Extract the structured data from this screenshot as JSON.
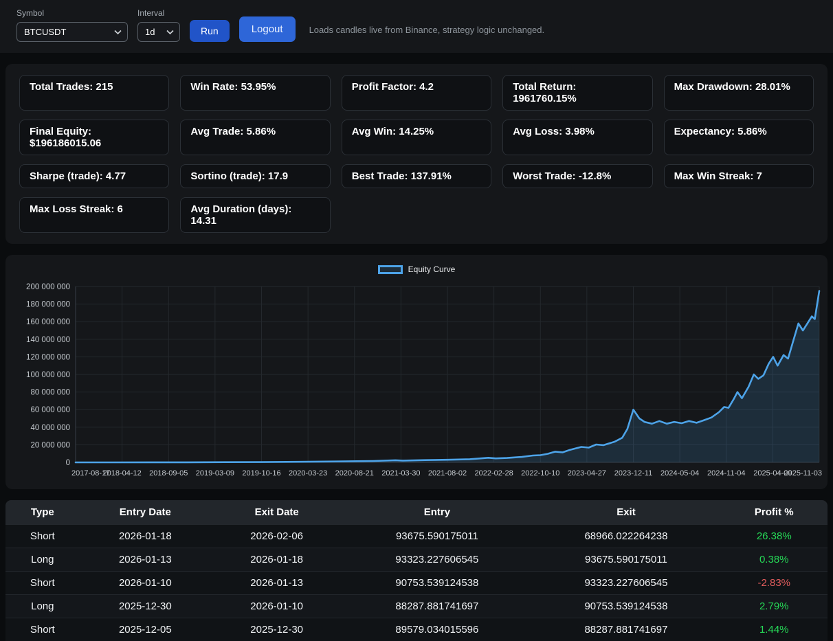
{
  "topbar": {
    "symbol_label": "Symbol",
    "symbol_value": "BTCUSDT",
    "interval_label": "Interval",
    "interval_value": "1d",
    "run_button": "Run",
    "logout_button": "Logout",
    "note": "Loads candles live from Binance, strategy logic unchanged."
  },
  "stats": [
    "Total Trades: 215",
    "Win Rate: 53.95%",
    "Profit Factor: 4.2",
    "Total Return: 1961760.15%",
    "Max Drawdown: 28.01%",
    "Final Equity: $196186015.06",
    "Avg Trade: 5.86%",
    "Avg Win: 14.25%",
    "Avg Loss: 3.98%",
    "Expectancy: 5.86%",
    "Sharpe (trade): 4.77",
    "Sortino (trade): 17.9",
    "Best Trade: 137.91%",
    "Worst Trade: -12.8%",
    "Max Win Streak: 7",
    "Max Loss Streak: 6",
    "Avg Duration (days): 14.31"
  ],
  "chart_data": {
    "type": "line",
    "legend_position": "top",
    "grid": true,
    "x_axis": {
      "tick_labels": [
        "2017-08-17",
        "2018-04-12",
        "2018-09-05",
        "2019-03-09",
        "2019-10-16",
        "2020-03-23",
        "2020-08-21",
        "2021-03-30",
        "2021-08-02",
        "2022-02-28",
        "2022-10-10",
        "2023-04-27",
        "2023-12-11",
        "2024-05-04",
        "2024-11-04",
        "2025-04-09",
        "2025-11-03"
      ]
    },
    "y_axis": {
      "min": 0,
      "max": 200000000,
      "tick_step": 20000000,
      "tick_labels": [
        "0",
        "20 000 000",
        "40 000 000",
        "60 000 000",
        "80 000 000",
        "100 000 000",
        "120 000 000",
        "140 000 000",
        "160 000 000",
        "180 000 000",
        "200 000 000"
      ]
    },
    "series": [
      {
        "name": "Equity Curve",
        "color": "#4da3e8",
        "fill": "rgba(77,163,232,0.16)",
        "points": [
          [
            0.0,
            10000
          ],
          [
            0.05,
            20000
          ],
          [
            0.1,
            50000
          ],
          [
            0.15,
            100000
          ],
          [
            0.2,
            200000
          ],
          [
            0.25,
            350000
          ],
          [
            0.3,
            600000
          ],
          [
            0.35,
            1000000
          ],
          [
            0.4,
            1600000
          ],
          [
            0.43,
            2400000
          ],
          [
            0.44,
            2000000
          ],
          [
            0.47,
            2600000
          ],
          [
            0.5,
            3000000
          ],
          [
            0.53,
            3600000
          ],
          [
            0.555,
            5200000
          ],
          [
            0.565,
            4500000
          ],
          [
            0.58,
            5000000
          ],
          [
            0.6,
            6200000
          ],
          [
            0.615,
            7800000
          ],
          [
            0.625,
            8200000
          ],
          [
            0.635,
            9800000
          ],
          [
            0.645,
            12200000
          ],
          [
            0.655,
            11400000
          ],
          [
            0.665,
            14300000
          ],
          [
            0.68,
            17600000
          ],
          [
            0.69,
            16800000
          ],
          [
            0.7,
            20300000
          ],
          [
            0.71,
            19600000
          ],
          [
            0.725,
            23500000
          ],
          [
            0.735,
            28000000
          ],
          [
            0.742,
            38000000
          ],
          [
            0.75,
            60000000
          ],
          [
            0.758,
            50000000
          ],
          [
            0.765,
            46000000
          ],
          [
            0.775,
            44000000
          ],
          [
            0.785,
            47000000
          ],
          [
            0.795,
            44000000
          ],
          [
            0.805,
            46000000
          ],
          [
            0.815,
            44500000
          ],
          [
            0.825,
            47000000
          ],
          [
            0.835,
            45000000
          ],
          [
            0.845,
            48000000
          ],
          [
            0.855,
            51000000
          ],
          [
            0.865,
            57000000
          ],
          [
            0.872,
            63000000
          ],
          [
            0.878,
            62000000
          ],
          [
            0.885,
            72000000
          ],
          [
            0.89,
            80000000
          ],
          [
            0.896,
            73000000
          ],
          [
            0.905,
            86000000
          ],
          [
            0.912,
            100000000
          ],
          [
            0.918,
            95000000
          ],
          [
            0.925,
            99000000
          ],
          [
            0.932,
            112000000
          ],
          [
            0.938,
            120000000
          ],
          [
            0.944,
            110000000
          ],
          [
            0.952,
            122000000
          ],
          [
            0.958,
            118000000
          ],
          [
            0.965,
            138000000
          ],
          [
            0.972,
            158000000
          ],
          [
            0.978,
            150000000
          ],
          [
            0.984,
            158000000
          ],
          [
            0.99,
            166000000
          ],
          [
            0.994,
            163000000
          ],
          [
            1.0,
            195000000
          ]
        ]
      }
    ]
  },
  "table": {
    "headers": [
      "Type",
      "Entry Date",
      "Exit Date",
      "Entry",
      "Exit",
      "Profit %"
    ],
    "rows": [
      [
        "Short",
        "2026-01-18",
        "2026-02-06",
        "93675.590175011",
        "68966.022264238",
        "26.38%"
      ],
      [
        "Long",
        "2026-01-13",
        "2026-01-18",
        "93323.227606545",
        "93675.590175011",
        "0.38%"
      ],
      [
        "Short",
        "2026-01-10",
        "2026-01-13",
        "90753.539124538",
        "93323.227606545",
        "-2.83%"
      ],
      [
        "Long",
        "2025-12-30",
        "2026-01-10",
        "88287.881741697",
        "90753.539124538",
        "2.79%"
      ],
      [
        "Short",
        "2025-12-05",
        "2025-12-30",
        "89579.034015596",
        "88287.881741697",
        "1.44%"
      ]
    ]
  },
  "colors": {
    "equity_line": "#4da3e8",
    "equity_fill": "rgba(77,163,232,0.16)",
    "run_button": "#2154c8",
    "logout_button": "#2e66d8",
    "profit_up": "#26d957",
    "profit_down": "#e05c5c"
  }
}
